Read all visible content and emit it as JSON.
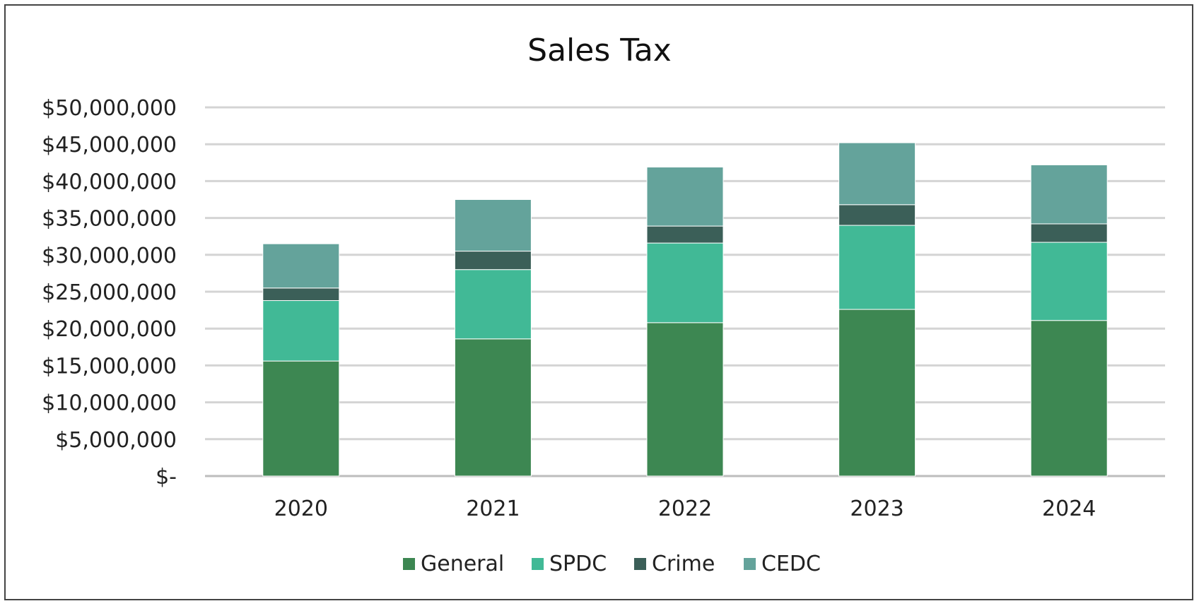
{
  "chart_data": {
    "type": "bar",
    "stacked": true,
    "title": "Sales Tax",
    "xlabel": "",
    "ylabel": "",
    "categories": [
      "2020",
      "2021",
      "2022",
      "2023",
      "2024"
    ],
    "series": [
      {
        "name": "General",
        "color": "#3d8752",
        "values": [
          15600000,
          18600000,
          20800000,
          22600000,
          21100000
        ]
      },
      {
        "name": "SPDC",
        "color": "#41b996",
        "values": [
          8200000,
          9400000,
          10800000,
          11400000,
          10600000
        ]
      },
      {
        "name": "Crime",
        "color": "#3b5f58",
        "values": [
          1700000,
          2500000,
          2300000,
          2800000,
          2500000
        ]
      },
      {
        "name": "CEDC",
        "color": "#64a39b",
        "values": [
          6000000,
          7000000,
          8000000,
          8400000,
          8000000
        ]
      }
    ],
    "ylim": [
      0,
      50000000
    ],
    "yticks": [
      0,
      5000000,
      10000000,
      15000000,
      20000000,
      25000000,
      30000000,
      35000000,
      40000000,
      45000000,
      50000000
    ],
    "ytick_labels": [
      "$-",
      "$5,000,000",
      "$10,000,000",
      "$15,000,000",
      "$20,000,000",
      "$25,000,000",
      "$30,000,000",
      "$35,000,000",
      "$40,000,000",
      "$45,000,000",
      "$50,000,000"
    ],
    "grid": true,
    "legend_position": "bottom"
  }
}
